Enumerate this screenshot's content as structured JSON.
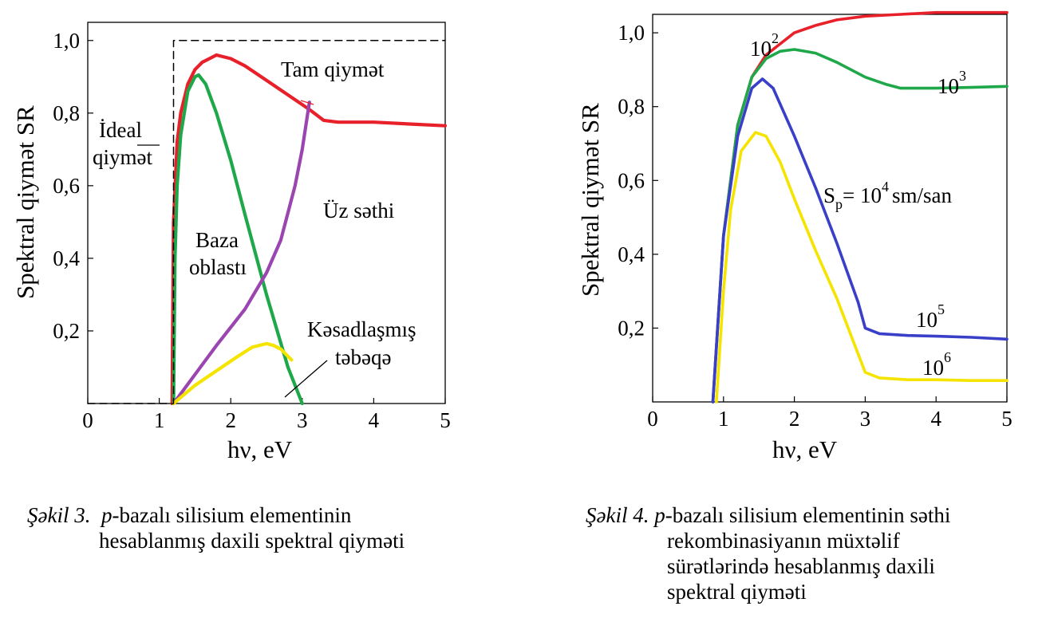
{
  "colors": {
    "red": "#e8202a",
    "green": "#1fa84a",
    "purple": "#9b45b0",
    "yellow": "#f5e400",
    "blue": "#3a3fc8"
  },
  "figure3": {
    "caption_label": "Şəkil 3.",
    "caption_italic": "p",
    "caption_rest_line1": "-bazalı silisium elementinin",
    "caption_line2": "hesablanmış daxili spektral qiyməti",
    "annotations": {
      "tam": "Tam qiymət",
      "ideal_1": "İdeal",
      "ideal_2": "qiymət",
      "uz": "Üz səthi",
      "baza_1": "Baza",
      "baza_2": "oblastı",
      "kesad_1": "Kəsadlaşmış",
      "kesad_2": "təbəqə"
    }
  },
  "figure4": {
    "caption_label": "Şəkil 4.",
    "caption_italic": "p",
    "caption_rest_line1": "-bazalı silisium elementinin səthi",
    "caption_line2": "rekombinasiyanın müxtəlif",
    "caption_line3": "sürətlərində hesablanmış daxili",
    "caption_line4": "spektral qiyməti",
    "annotations": {
      "s10": "10",
      "s10_exp": "2",
      "s10_3": "10",
      "s10_3_exp": "3",
      "sp_prefix": "S",
      "sp_sub": "p",
      "sp_eq": "= 10",
      "sp_exp": "4",
      "sp_unit": "sm/san",
      "s10_5": "10",
      "s10_5_exp": "5",
      "s10_6": "10",
      "s10_6_exp": "6"
    }
  },
  "chart_data": [
    {
      "type": "line",
      "xlabel": "hν, eV",
      "ylabel": "Spektral qiymət SR",
      "xlim": [
        0,
        5
      ],
      "ylim": [
        0,
        1.05
      ],
      "x_ticks": [
        "0",
        "1",
        "2",
        "3",
        "4",
        "5"
      ],
      "y_ticks": [
        "0,2",
        "0,4",
        "0,6",
        "0,8",
        "1,0"
      ],
      "y_tick_values": [
        0.2,
        0.4,
        0.6,
        0.8,
        1.0
      ],
      "series": [
        {
          "name": "Tam qiymət",
          "color": "red",
          "x": [
            1.18,
            1.2,
            1.25,
            1.3,
            1.4,
            1.5,
            1.6,
            1.8,
            2.0,
            2.2,
            2.5,
            2.8,
            3.1,
            3.3,
            3.5,
            4.0,
            4.5,
            5.0
          ],
          "y": [
            0.0,
            0.5,
            0.72,
            0.8,
            0.88,
            0.92,
            0.94,
            0.96,
            0.95,
            0.93,
            0.89,
            0.85,
            0.81,
            0.78,
            0.775,
            0.775,
            0.77,
            0.765
          ]
        },
        {
          "name": "Baza oblastı",
          "color": "green",
          "x": [
            1.2,
            1.22,
            1.25,
            1.3,
            1.4,
            1.5,
            1.55,
            1.65,
            1.8,
            2.0,
            2.2,
            2.5,
            2.8,
            3.0
          ],
          "y": [
            0.0,
            0.4,
            0.6,
            0.74,
            0.86,
            0.9,
            0.905,
            0.88,
            0.8,
            0.67,
            0.52,
            0.3,
            0.1,
            0.0
          ]
        },
        {
          "name": "Üz səthi",
          "color": "purple",
          "x": [
            1.2,
            1.5,
            1.8,
            2.0,
            2.2,
            2.5,
            2.7,
            2.9,
            3.0,
            3.1
          ],
          "y": [
            0.0,
            0.08,
            0.16,
            0.21,
            0.26,
            0.36,
            0.45,
            0.6,
            0.7,
            0.83
          ]
        },
        {
          "name": "Kəsadlaşmış təbəqə",
          "color": "yellow",
          "x": [
            1.2,
            1.5,
            1.8,
            2.1,
            2.3,
            2.5,
            2.6,
            2.7,
            2.85
          ],
          "y": [
            0.0,
            0.05,
            0.09,
            0.13,
            0.155,
            0.165,
            0.16,
            0.15,
            0.12
          ]
        },
        {
          "name": "İdeal qiymət",
          "color": "black",
          "dashed": true,
          "x": [
            0,
            1.2,
            1.2,
            5.0
          ],
          "y": [
            0.0,
            0.0,
            1.0,
            1.0
          ]
        }
      ]
    },
    {
      "type": "line",
      "xlabel": "hν, eV",
      "ylabel": "Spektral qiymət SR",
      "xlim": [
        0,
        5
      ],
      "ylim": [
        0,
        1.05
      ],
      "x_ticks": [
        "0",
        "1",
        "2",
        "3",
        "4",
        "5"
      ],
      "y_ticks": [
        "0,2",
        "0,4",
        "0,6",
        "0,8",
        "1,0"
      ],
      "y_tick_values": [
        0.2,
        0.4,
        0.6,
        0.8,
        1.0
      ],
      "series": [
        {
          "name": "10^2",
          "color": "red",
          "x": [
            0.85,
            1.0,
            1.2,
            1.4,
            1.6,
            1.8,
            2.0,
            2.3,
            2.6,
            3.0,
            3.5,
            4.0,
            4.5,
            5.0
          ],
          "y": [
            0.0,
            0.45,
            0.75,
            0.88,
            0.94,
            0.97,
            1.0,
            1.02,
            1.035,
            1.045,
            1.05,
            1.055,
            1.055,
            1.055
          ]
        },
        {
          "name": "10^3",
          "color": "green",
          "x": [
            0.85,
            1.0,
            1.2,
            1.4,
            1.6,
            1.8,
            2.0,
            2.3,
            2.6,
            3.0,
            3.3,
            3.5,
            4.0,
            4.5,
            5.0
          ],
          "y": [
            0.0,
            0.45,
            0.75,
            0.88,
            0.93,
            0.95,
            0.955,
            0.945,
            0.92,
            0.88,
            0.86,
            0.85,
            0.85,
            0.852,
            0.855
          ]
        },
        {
          "name": "10^4",
          "color": "blue",
          "x": [
            0.85,
            1.0,
            1.2,
            1.4,
            1.55,
            1.7,
            2.0,
            2.3,
            2.6,
            2.9,
            3.0,
            3.2,
            3.6,
            4.0,
            4.5,
            5.0
          ],
          "y": [
            0.0,
            0.45,
            0.72,
            0.85,
            0.875,
            0.85,
            0.72,
            0.58,
            0.43,
            0.27,
            0.2,
            0.185,
            0.18,
            0.178,
            0.175,
            0.17
          ]
        },
        {
          "name": "10^6",
          "color": "yellow",
          "x": [
            0.9,
            1.0,
            1.1,
            1.25,
            1.45,
            1.6,
            1.8,
            2.0,
            2.3,
            2.6,
            2.9,
            3.0,
            3.2,
            3.6,
            4.0,
            4.5,
            5.0
          ],
          "y": [
            0.0,
            0.3,
            0.52,
            0.68,
            0.73,
            0.72,
            0.65,
            0.55,
            0.41,
            0.28,
            0.13,
            0.08,
            0.065,
            0.06,
            0.06,
            0.058,
            0.058
          ]
        }
      ]
    }
  ]
}
